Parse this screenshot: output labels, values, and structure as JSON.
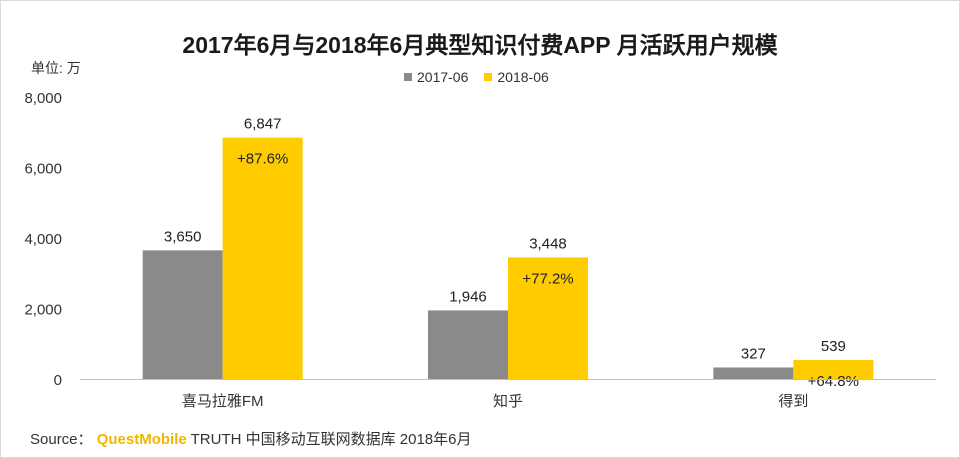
{
  "chart_data": {
    "type": "bar",
    "title": "2017年6月与2018年6月典型知识付费APP 月活跃用户规模",
    "ylabel": "单位: 万",
    "categories": [
      "喜马拉雅FM",
      "知乎",
      "得到"
    ],
    "series": [
      {
        "name": "2017-06",
        "color": "#8a8a8a",
        "values": [
          3650,
          1946,
          327
        ],
        "labels": [
          "3,650",
          "1,946",
          "327"
        ]
      },
      {
        "name": "2018-06",
        "color": "#ffcc00",
        "values": [
          6847,
          3448,
          539
        ],
        "labels": [
          "6,847",
          "3,448",
          "539"
        ]
      }
    ],
    "growth_labels": [
      "+87.6%",
      "+77.2%",
      "+64.8%"
    ],
    "ylim": [
      0,
      8000
    ],
    "yticks": [
      0,
      2000,
      4000,
      6000,
      8000
    ],
    "ytick_labels": [
      "0",
      "2,000",
      "4,000",
      "6,000",
      "8,000"
    ],
    "grid": false,
    "legend_position": "top-center"
  },
  "source": {
    "prefix": "Source：",
    "brand": "QuestMobile",
    "suffix": " TRUTH 中国移动互联网数据库 2018年6月"
  }
}
